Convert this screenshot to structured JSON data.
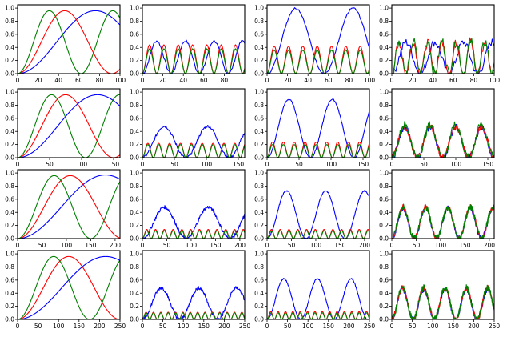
{
  "figure": {
    "rows": 4,
    "cols": 4
  },
  "colors": {
    "blue": "#0000ff",
    "red": "#ff0000",
    "green": "#008000"
  },
  "chart_data": [
    {
      "type": "line",
      "row": 0,
      "col": 0,
      "kind": "base",
      "n": 100,
      "xlim": [
        0,
        100
      ],
      "ylim": [
        0,
        1.05
      ],
      "xticks": [
        0,
        20,
        40,
        60,
        80,
        100
      ],
      "yticks": [
        0.0,
        0.2,
        0.4,
        0.6,
        0.8,
        1.0
      ],
      "ytick_labels": [
        "0.0",
        "0.2",
        "0.4",
        "0.6",
        "0.8",
        "1.0"
      ],
      "series": [
        {
          "name": "blue",
          "color": "#0000ff",
          "peak": 0.96,
          "peak_x": 76
        },
        {
          "name": "red",
          "color": "#ff0000",
          "peak": 0.96,
          "peak_x": 46
        },
        {
          "name": "green",
          "color": "#008000",
          "peak": 0.96,
          "peak_x": 31
        }
      ]
    },
    {
      "type": "line",
      "row": 0,
      "col": 1,
      "kind": "harmonic",
      "n": 100,
      "xlim": [
        0,
        100
      ],
      "ylim": [
        0,
        1.05
      ],
      "xticks": [
        0,
        20,
        40,
        60,
        80
      ],
      "yticks": [
        0.0,
        0.2,
        0.4,
        0.6,
        0.8,
        1.0
      ],
      "ytick_labels": [
        "0.0",
        "0.2",
        "0.4",
        "0.6",
        "0.8",
        "1.0"
      ],
      "series": [
        {
          "name": "blue",
          "color": "#0000ff",
          "peak": 0.5,
          "period": 28,
          "noise": 0.02
        },
        {
          "name": "red",
          "color": "#ff0000",
          "peak": 0.44,
          "period": 14,
          "noise": 0.0
        },
        {
          "name": "green",
          "color": "#008000",
          "peak": 0.38,
          "period": 14,
          "noise": 0.0
        }
      ]
    },
    {
      "type": "line",
      "row": 0,
      "col": 2,
      "kind": "harmonic",
      "n": 100,
      "xlim": [
        0,
        100
      ],
      "ylim": [
        0,
        1.05
      ],
      "xticks": [
        0,
        20,
        40,
        60,
        80,
        100
      ],
      "yticks": [
        0.0,
        0.2,
        0.4,
        0.6,
        0.8,
        1.0
      ],
      "ytick_labels": [
        "0.0",
        "0.2",
        "0.4",
        "0.6",
        "0.8",
        "1.0"
      ],
      "series": [
        {
          "name": "blue",
          "color": "#0000ff",
          "peak": 1.0,
          "period": 56,
          "noise": 0.015
        },
        {
          "name": "red",
          "color": "#ff0000",
          "peak": 0.42,
          "period": 14,
          "noise": 0.0
        },
        {
          "name": "green",
          "color": "#008000",
          "peak": 0.36,
          "period": 14,
          "noise": 0.0
        }
      ]
    },
    {
      "type": "line",
      "row": 0,
      "col": 3,
      "kind": "noisy",
      "n": 100,
      "xlim": [
        0,
        100
      ],
      "ylim": [
        0,
        1.05
      ],
      "xticks": [
        0,
        20,
        40,
        60,
        80,
        100
      ],
      "yticks": [
        0.0,
        0.2,
        0.4,
        0.6,
        0.8,
        1.0
      ],
      "ytick_labels": [
        "0.0",
        "0.2",
        "0.4",
        "0.6",
        "0.8",
        "1.0"
      ],
      "series": [
        {
          "name": "blue",
          "color": "#0000ff",
          "peak": 0.48,
          "period": 28,
          "noise": 0.06
        },
        {
          "name": "red",
          "color": "#ff0000",
          "peak": 0.48,
          "period": 14,
          "noise": 0.06
        },
        {
          "name": "green",
          "color": "#008000",
          "peak": 0.5,
          "period": 14,
          "noise": 0.08
        }
      ]
    },
    {
      "type": "line",
      "row": 1,
      "col": 0,
      "kind": "base",
      "n": 160,
      "xlim": [
        0,
        160
      ],
      "ylim": [
        0,
        1.05
      ],
      "xticks": [
        0,
        50,
        100,
        150
      ],
      "yticks": [
        0.0,
        0.2,
        0.4,
        0.6,
        0.8,
        1.0
      ],
      "ytick_labels": [
        "0.0",
        "0.2",
        "0.4",
        "0.6",
        "0.8",
        "1.0"
      ],
      "series": [
        {
          "name": "blue",
          "color": "#0000ff",
          "peak": 0.96,
          "peak_x": 125
        },
        {
          "name": "red",
          "color": "#ff0000",
          "peak": 0.96,
          "peak_x": 75
        },
        {
          "name": "green",
          "color": "#008000",
          "peak": 0.96,
          "peak_x": 53
        }
      ]
    },
    {
      "type": "line",
      "row": 1,
      "col": 1,
      "kind": "harmonic",
      "n": 160,
      "xlim": [
        0,
        160
      ],
      "ylim": [
        0,
        1.05
      ],
      "xticks": [
        0,
        50,
        100,
        150
      ],
      "yticks": [
        0.0,
        0.2,
        0.4,
        0.6,
        0.8,
        1.0
      ],
      "ytick_labels": [
        "0.0",
        "0.2",
        "0.4",
        "0.6",
        "0.8",
        "1.0"
      ],
      "series": [
        {
          "name": "blue",
          "color": "#0000ff",
          "peak": 0.48,
          "period": 68,
          "noise": 0.02
        },
        {
          "name": "red",
          "color": "#ff0000",
          "peak": 0.22,
          "period": 17,
          "noise": 0.0
        },
        {
          "name": "green",
          "color": "#008000",
          "peak": 0.2,
          "period": 17,
          "noise": 0.0
        }
      ]
    },
    {
      "type": "line",
      "row": 1,
      "col": 2,
      "kind": "harmonic",
      "n": 160,
      "xlim": [
        0,
        160
      ],
      "ylim": [
        0,
        1.05
      ],
      "xticks": [
        0,
        50,
        100,
        150
      ],
      "yticks": [
        0.0,
        0.2,
        0.4,
        0.6,
        0.8,
        1.0
      ],
      "ytick_labels": [
        "0.0",
        "0.2",
        "0.4",
        "0.6",
        "0.8",
        "1.0"
      ],
      "series": [
        {
          "name": "blue",
          "color": "#0000ff",
          "peak": 0.89,
          "period": 68,
          "noise": 0.01
        },
        {
          "name": "red",
          "color": "#ff0000",
          "peak": 0.24,
          "period": 17,
          "noise": 0.0
        },
        {
          "name": "green",
          "color": "#008000",
          "peak": 0.2,
          "period": 17,
          "noise": 0.0
        }
      ]
    },
    {
      "type": "line",
      "row": 1,
      "col": 3,
      "kind": "noisy",
      "n": 160,
      "xlim": [
        0,
        160
      ],
      "ylim": [
        0,
        1.05
      ],
      "xticks": [
        0,
        50,
        100,
        150
      ],
      "yticks": [
        0.0,
        0.2,
        0.4,
        0.6,
        0.8,
        1.0
      ],
      "ytick_labels": [
        "0.0",
        "0.2",
        "0.4",
        "0.6",
        "0.8",
        "1.0"
      ],
      "series": [
        {
          "name": "blue",
          "color": "#0000ff",
          "peak": 0.47,
          "period": 40,
          "noise": 0.05
        },
        {
          "name": "red",
          "color": "#ff0000",
          "peak": 0.48,
          "period": 40,
          "noise": 0.05
        },
        {
          "name": "green",
          "color": "#008000",
          "peak": 0.5,
          "period": 40,
          "noise": 0.06
        }
      ]
    },
    {
      "type": "line",
      "row": 2,
      "col": 0,
      "kind": "base",
      "n": 210,
      "xlim": [
        0,
        210
      ],
      "ylim": [
        0,
        1.05
      ],
      "xticks": [
        0,
        50,
        100,
        150,
        200
      ],
      "yticks": [
        0.0,
        0.2,
        0.4,
        0.6,
        0.8,
        1.0
      ],
      "ytick_labels": [
        "0.0",
        "0.2",
        "0.4",
        "0.6",
        "0.8",
        "1.0"
      ],
      "series": [
        {
          "name": "blue",
          "color": "#0000ff",
          "peak": 0.97,
          "peak_x": 180
        },
        {
          "name": "red",
          "color": "#ff0000",
          "peak": 0.96,
          "peak_x": 108
        },
        {
          "name": "green",
          "color": "#008000",
          "peak": 0.96,
          "peak_x": 75
        }
      ]
    },
    {
      "type": "line",
      "row": 2,
      "col": 1,
      "kind": "harmonic",
      "n": 210,
      "xlim": [
        0,
        210
      ],
      "ylim": [
        0,
        1.05
      ],
      "xticks": [
        0,
        50,
        100,
        150,
        200
      ],
      "yticks": [
        0.0,
        0.2,
        0.4,
        0.6,
        0.8,
        1.0
      ],
      "ytick_labels": [
        "0.0",
        "0.2",
        "0.4",
        "0.6",
        "0.8",
        "1.0"
      ],
      "series": [
        {
          "name": "blue",
          "color": "#0000ff",
          "peak": 0.48,
          "period": 90,
          "noise": 0.025
        },
        {
          "name": "red",
          "color": "#ff0000",
          "peak": 0.14,
          "period": 18,
          "noise": 0.0
        },
        {
          "name": "green",
          "color": "#008000",
          "peak": 0.12,
          "period": 18,
          "noise": 0.0
        }
      ]
    },
    {
      "type": "line",
      "row": 2,
      "col": 2,
      "kind": "harmonic",
      "n": 210,
      "xlim": [
        0,
        210
      ],
      "ylim": [
        0,
        1.05
      ],
      "xticks": [
        0,
        50,
        100,
        150,
        200
      ],
      "yticks": [
        0.0,
        0.2,
        0.4,
        0.6,
        0.8,
        1.0
      ],
      "ytick_labels": [
        "0.0",
        "0.2",
        "0.4",
        "0.6",
        "0.8",
        "1.0"
      ],
      "series": [
        {
          "name": "blue",
          "color": "#0000ff",
          "peak": 0.73,
          "period": 80,
          "noise": 0.01
        },
        {
          "name": "red",
          "color": "#ff0000",
          "peak": 0.14,
          "period": 18,
          "noise": 0.0
        },
        {
          "name": "green",
          "color": "#008000",
          "peak": 0.12,
          "period": 18,
          "noise": 0.0
        }
      ]
    },
    {
      "type": "line",
      "row": 2,
      "col": 3,
      "kind": "noisy",
      "n": 210,
      "xlim": [
        0,
        210
      ],
      "ylim": [
        0,
        1.05
      ],
      "xticks": [
        0,
        50,
        100,
        150,
        200
      ],
      "yticks": [
        0.0,
        0.2,
        0.4,
        0.6,
        0.8,
        1.0
      ],
      "ytick_labels": [
        "0.0",
        "0.2",
        "0.4",
        "0.6",
        "0.8",
        "1.0"
      ],
      "series": [
        {
          "name": "blue",
          "color": "#0000ff",
          "peak": 0.46,
          "period": 46,
          "noise": 0.04
        },
        {
          "name": "red",
          "color": "#ff0000",
          "peak": 0.48,
          "period": 46,
          "noise": 0.04
        },
        {
          "name": "green",
          "color": "#008000",
          "peak": 0.48,
          "period": 46,
          "noise": 0.05
        }
      ]
    },
    {
      "type": "line",
      "row": 3,
      "col": 0,
      "kind": "base",
      "n": 250,
      "xlim": [
        0,
        250
      ],
      "ylim": [
        0,
        1.05
      ],
      "xticks": [
        0,
        50,
        100,
        150,
        200,
        250
      ],
      "yticks": [
        0.0,
        0.2,
        0.4,
        0.6,
        0.8,
        1.0
      ],
      "ytick_labels": [
        "0.0",
        "0.2",
        "0.4",
        "0.6",
        "0.8",
        "1.0"
      ],
      "series": [
        {
          "name": "blue",
          "color": "#0000ff",
          "peak": 0.96,
          "peak_x": 215
        },
        {
          "name": "red",
          "color": "#ff0000",
          "peak": 0.96,
          "peak_x": 125
        },
        {
          "name": "green",
          "color": "#008000",
          "peak": 0.96,
          "peak_x": 88
        }
      ]
    },
    {
      "type": "line",
      "row": 3,
      "col": 1,
      "kind": "harmonic",
      "n": 250,
      "xlim": [
        0,
        250
      ],
      "ylim": [
        0,
        1.05
      ],
      "xticks": [
        0,
        50,
        100,
        150,
        200,
        250
      ],
      "yticks": [
        0.0,
        0.2,
        0.4,
        0.6,
        0.8,
        1.0
      ],
      "ytick_labels": [
        "0.0",
        "0.2",
        "0.4",
        "0.6",
        "0.8",
        "1.0"
      ],
      "series": [
        {
          "name": "blue",
          "color": "#0000ff",
          "peak": 0.48,
          "period": 92,
          "noise": 0.025
        },
        {
          "name": "red",
          "color": "#ff0000",
          "peak": 0.11,
          "period": 18,
          "noise": 0.0
        },
        {
          "name": "green",
          "color": "#008000",
          "peak": 0.1,
          "period": 18,
          "noise": 0.0
        }
      ]
    },
    {
      "type": "line",
      "row": 3,
      "col": 2,
      "kind": "harmonic",
      "n": 250,
      "xlim": [
        0,
        250
      ],
      "ylim": [
        0,
        1.05
      ],
      "xticks": [
        0,
        50,
        100,
        150,
        200,
        250
      ],
      "yticks": [
        0.0,
        0.2,
        0.4,
        0.6,
        0.8,
        1.0
      ],
      "ytick_labels": [
        "0.0",
        "0.2",
        "0.4",
        "0.6",
        "0.8",
        "1.0"
      ],
      "series": [
        {
          "name": "blue",
          "color": "#0000ff",
          "peak": 0.62,
          "period": 82,
          "noise": 0.01
        },
        {
          "name": "red",
          "color": "#ff0000",
          "peak": 0.12,
          "period": 18,
          "noise": 0.0
        },
        {
          "name": "green",
          "color": "#008000",
          "peak": 0.1,
          "period": 18,
          "noise": 0.0
        }
      ]
    },
    {
      "type": "line",
      "row": 3,
      "col": 3,
      "kind": "noisy",
      "n": 250,
      "xlim": [
        0,
        250
      ],
      "ylim": [
        0,
        1.05
      ],
      "xticks": [
        0,
        50,
        100,
        150,
        200,
        250
      ],
      "yticks": [
        0.0,
        0.2,
        0.4,
        0.6,
        0.8,
        1.0
      ],
      "ytick_labels": [
        "0.0",
        "0.2",
        "0.4",
        "0.6",
        "0.8",
        "1.0"
      ],
      "series": [
        {
          "name": "blue",
          "color": "#0000ff",
          "peak": 0.46,
          "period": 52,
          "noise": 0.04
        },
        {
          "name": "red",
          "color": "#ff0000",
          "peak": 0.48,
          "period": 52,
          "noise": 0.04
        },
        {
          "name": "green",
          "color": "#008000",
          "peak": 0.48,
          "period": 52,
          "noise": 0.05
        }
      ]
    }
  ]
}
